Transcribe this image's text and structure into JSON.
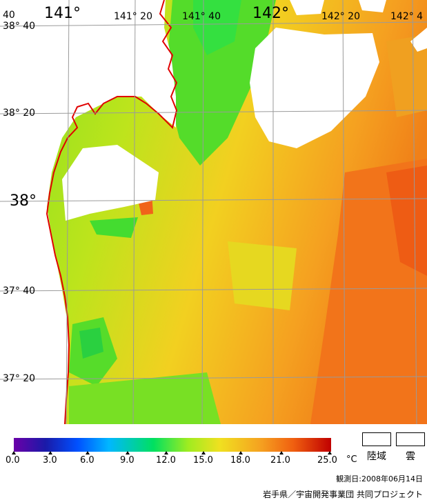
{
  "map": {
    "lon_labels": [
      "40",
      "141°",
      "141° 20",
      "141° 40",
      "142°",
      "142° 20",
      "142° 4"
    ],
    "lat_labels": [
      "38° 40",
      "38° 20",
      "38°",
      "37° 40",
      "37° 20"
    ],
    "colors": {
      "land": "#ffffff",
      "coast": "#e00000",
      "grid": "#9a9a9a"
    }
  },
  "colorbar": {
    "ticks": [
      "0.0",
      "3.0",
      "6.0",
      "9.0",
      "12.0",
      "15.0",
      "18.0",
      "21.0",
      "25.0"
    ],
    "unit": "°C"
  },
  "legend": {
    "land_label": "陸域",
    "cloud_label": "雲"
  },
  "observation": "観測日:2008年06月14日",
  "credit": "岩手県／宇宙開発事業団 共同プロジェクト"
}
